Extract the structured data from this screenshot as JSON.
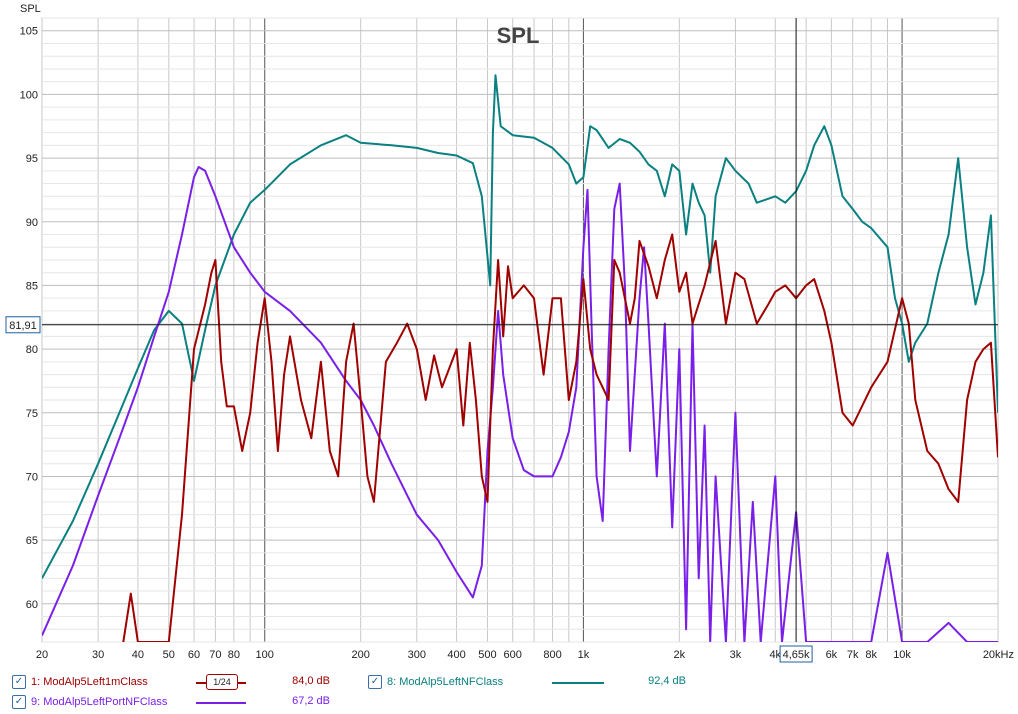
{
  "window": {
    "title": "SPL",
    "y_axis_label": "SPL"
  },
  "cursor": {
    "y_value_label": "81,91",
    "x_value_label": "4,65k",
    "y_value": 81.91,
    "x_value": 4650
  },
  "chart_data": {
    "type": "line",
    "title": "SPL",
    "xlabel": "",
    "ylabel": "SPL",
    "xscale": "log",
    "xlim": [
      20,
      20000
    ],
    "ylim": [
      57,
      106
    ],
    "grid": true,
    "x_tick_labels": [
      {
        "v": 20,
        "t": "20"
      },
      {
        "v": 30,
        "t": "30"
      },
      {
        "v": 40,
        "t": "40"
      },
      {
        "v": 50,
        "t": "50"
      },
      {
        "v": 60,
        "t": "60"
      },
      {
        "v": 70,
        "t": "70"
      },
      {
        "v": 80,
        "t": "80"
      },
      {
        "v": 100,
        "t": "100"
      },
      {
        "v": 200,
        "t": "200"
      },
      {
        "v": 300,
        "t": "300"
      },
      {
        "v": 400,
        "t": "400"
      },
      {
        "v": 500,
        "t": "500"
      },
      {
        "v": 600,
        "t": "600"
      },
      {
        "v": 800,
        "t": "800"
      },
      {
        "v": 1000,
        "t": "1k"
      },
      {
        "v": 2000,
        "t": "2k"
      },
      {
        "v": 3000,
        "t": "3k"
      },
      {
        "v": 4000,
        "t": "4k"
      },
      {
        "v": 6000,
        "t": "6k"
      },
      {
        "v": 7000,
        "t": "7k"
      },
      {
        "v": 8000,
        "t": "8k"
      },
      {
        "v": 10000,
        "t": "10k"
      },
      {
        "v": 20000,
        "t": "20kHz"
      }
    ],
    "y_tick_labels": [
      {
        "v": 60,
        "t": "60"
      },
      {
        "v": 65,
        "t": "65"
      },
      {
        "v": 70,
        "t": "70"
      },
      {
        "v": 75,
        "t": "75"
      },
      {
        "v": 80,
        "t": "80"
      },
      {
        "v": 85,
        "t": "85"
      },
      {
        "v": 90,
        "t": "90"
      },
      {
        "v": 95,
        "t": "95"
      },
      {
        "v": 100,
        "t": "100"
      },
      {
        "v": 105,
        "t": "105"
      }
    ],
    "series": [
      {
        "name": "ModAlp5LeftNFClass",
        "color": "#0a8080",
        "points": [
          [
            20,
            62
          ],
          [
            25,
            66.5
          ],
          [
            30,
            71
          ],
          [
            35,
            75
          ],
          [
            40,
            78.5
          ],
          [
            45,
            81.5
          ],
          [
            50,
            83
          ],
          [
            55,
            82
          ],
          [
            60,
            77.5
          ],
          [
            65,
            81.5
          ],
          [
            70,
            85
          ],
          [
            80,
            89
          ],
          [
            90,
            91.5
          ],
          [
            100,
            92.5
          ],
          [
            120,
            94.5
          ],
          [
            150,
            96
          ],
          [
            180,
            96.8
          ],
          [
            200,
            96.2
          ],
          [
            250,
            96
          ],
          [
            300,
            95.8
          ],
          [
            350,
            95.4
          ],
          [
            400,
            95.2
          ],
          [
            450,
            94.6
          ],
          [
            480,
            92
          ],
          [
            510,
            85
          ],
          [
            520,
            97
          ],
          [
            530,
            101.5
          ],
          [
            550,
            97.5
          ],
          [
            600,
            96.8
          ],
          [
            700,
            96.6
          ],
          [
            800,
            95.8
          ],
          [
            900,
            94.5
          ],
          [
            950,
            93
          ],
          [
            1000,
            93.5
          ],
          [
            1050,
            97.5
          ],
          [
            1100,
            97.2
          ],
          [
            1200,
            95.8
          ],
          [
            1300,
            96.5
          ],
          [
            1400,
            96.2
          ],
          [
            1500,
            95.5
          ],
          [
            1600,
            94.5
          ],
          [
            1700,
            94
          ],
          [
            1800,
            92
          ],
          [
            1900,
            94.5
          ],
          [
            2000,
            94
          ],
          [
            2100,
            89
          ],
          [
            2200,
            93
          ],
          [
            2300,
            91.5
          ],
          [
            2400,
            90.5
          ],
          [
            2500,
            86
          ],
          [
            2600,
            92
          ],
          [
            2800,
            95
          ],
          [
            3000,
            94
          ],
          [
            3300,
            93
          ],
          [
            3500,
            91.5
          ],
          [
            4000,
            92
          ],
          [
            4300,
            91.5
          ],
          [
            4650,
            92.4
          ],
          [
            5000,
            94
          ],
          [
            5300,
            96
          ],
          [
            5700,
            97.5
          ],
          [
            6000,
            96
          ],
          [
            6500,
            92
          ],
          [
            7000,
            91
          ],
          [
            7500,
            90
          ],
          [
            8000,
            89.5
          ],
          [
            9000,
            88
          ],
          [
            9500,
            84
          ],
          [
            10000,
            82
          ],
          [
            10500,
            79
          ],
          [
            11000,
            80.5
          ],
          [
            12000,
            82
          ],
          [
            13000,
            86
          ],
          [
            14000,
            89
          ],
          [
            15000,
            95
          ],
          [
            16000,
            88
          ],
          [
            17000,
            83.5
          ],
          [
            18000,
            86
          ],
          [
            19000,
            90.5
          ],
          [
            20000,
            75
          ]
        ]
      },
      {
        "name": "ModAlp5LeftPortNFClass",
        "color": "#7a1fe8",
        "points": [
          [
            20,
            57.5
          ],
          [
            25,
            63
          ],
          [
            30,
            68.5
          ],
          [
            35,
            73
          ],
          [
            40,
            77
          ],
          [
            45,
            81
          ],
          [
            50,
            84.5
          ],
          [
            55,
            89
          ],
          [
            60,
            93.5
          ],
          [
            62,
            94.3
          ],
          [
            65,
            94
          ],
          [
            70,
            92
          ],
          [
            80,
            88
          ],
          [
            90,
            86
          ],
          [
            100,
            84.5
          ],
          [
            120,
            83
          ],
          [
            150,
            80.5
          ],
          [
            180,
            77.5
          ],
          [
            200,
            76
          ],
          [
            220,
            74
          ],
          [
            250,
            71
          ],
          [
            300,
            67
          ],
          [
            350,
            65
          ],
          [
            400,
            62.5
          ],
          [
            450,
            60.5
          ],
          [
            480,
            63
          ],
          [
            500,
            72
          ],
          [
            520,
            77
          ],
          [
            540,
            83
          ],
          [
            560,
            78
          ],
          [
            600,
            73
          ],
          [
            650,
            70.5
          ],
          [
            700,
            70
          ],
          [
            750,
            70
          ],
          [
            800,
            70
          ],
          [
            850,
            71.5
          ],
          [
            900,
            73.5
          ],
          [
            950,
            77
          ],
          [
            1000,
            88
          ],
          [
            1030,
            92.5
          ],
          [
            1060,
            82
          ],
          [
            1100,
            70
          ],
          [
            1150,
            66.5
          ],
          [
            1200,
            80
          ],
          [
            1250,
            91
          ],
          [
            1300,
            93
          ],
          [
            1350,
            85
          ],
          [
            1400,
            72
          ],
          [
            1500,
            84
          ],
          [
            1550,
            88
          ],
          [
            1600,
            82
          ],
          [
            1700,
            70
          ],
          [
            1800,
            82
          ],
          [
            1900,
            66
          ],
          [
            2000,
            80
          ],
          [
            2100,
            58
          ],
          [
            2200,
            82
          ],
          [
            2300,
            62
          ],
          [
            2400,
            74
          ],
          [
            2500,
            57
          ],
          [
            2600,
            70
          ],
          [
            2800,
            57
          ],
          [
            3000,
            75
          ],
          [
            3200,
            57
          ],
          [
            3400,
            68
          ],
          [
            3600,
            57
          ],
          [
            4000,
            70
          ],
          [
            4200,
            57
          ],
          [
            4650,
            67.2
          ],
          [
            5000,
            57
          ],
          [
            5500,
            57
          ],
          [
            6000,
            57
          ],
          [
            8000,
            57
          ],
          [
            9000,
            64
          ],
          [
            10000,
            57
          ],
          [
            12000,
            57
          ],
          [
            14000,
            58.5
          ],
          [
            16000,
            57
          ],
          [
            20000,
            57
          ]
        ]
      },
      {
        "name": "ModAlp5Left1mClass",
        "color": "#a00000",
        "points": [
          [
            36,
            57
          ],
          [
            38,
            60.8
          ],
          [
            40,
            57
          ],
          [
            50,
            57
          ],
          [
            55,
            67
          ],
          [
            60,
            80
          ],
          [
            65,
            83.5
          ],
          [
            68,
            86
          ],
          [
            70,
            87
          ],
          [
            73,
            79
          ],
          [
            76,
            75.5
          ],
          [
            80,
            75.5
          ],
          [
            85,
            72
          ],
          [
            90,
            75
          ],
          [
            95,
            80.5
          ],
          [
            100,
            84
          ],
          [
            105,
            79
          ],
          [
            110,
            72
          ],
          [
            115,
            78
          ],
          [
            120,
            81
          ],
          [
            130,
            76
          ],
          [
            140,
            73
          ],
          [
            150,
            79
          ],
          [
            160,
            72
          ],
          [
            170,
            70
          ],
          [
            180,
            79
          ],
          [
            190,
            82
          ],
          [
            200,
            76
          ],
          [
            210,
            70
          ],
          [
            220,
            68
          ],
          [
            240,
            79
          ],
          [
            260,
            80.5
          ],
          [
            280,
            82
          ],
          [
            300,
            80
          ],
          [
            320,
            76
          ],
          [
            340,
            79.5
          ],
          [
            360,
            77
          ],
          [
            400,
            80
          ],
          [
            420,
            74
          ],
          [
            440,
            80.5
          ],
          [
            460,
            76
          ],
          [
            480,
            70
          ],
          [
            500,
            68
          ],
          [
            520,
            80
          ],
          [
            540,
            87
          ],
          [
            560,
            81
          ],
          [
            580,
            86.5
          ],
          [
            600,
            84
          ],
          [
            650,
            85
          ],
          [
            700,
            84
          ],
          [
            750,
            78
          ],
          [
            800,
            84
          ],
          [
            850,
            84
          ],
          [
            900,
            76
          ],
          [
            950,
            79
          ],
          [
            1000,
            85.5
          ],
          [
            1050,
            80
          ],
          [
            1100,
            78
          ],
          [
            1200,
            76
          ],
          [
            1250,
            87
          ],
          [
            1300,
            86
          ],
          [
            1400,
            82
          ],
          [
            1450,
            84
          ],
          [
            1500,
            88.5
          ],
          [
            1600,
            86.5
          ],
          [
            1700,
            84
          ],
          [
            1800,
            87
          ],
          [
            1900,
            89
          ],
          [
            2000,
            84.5
          ],
          [
            2100,
            86
          ],
          [
            2200,
            82
          ],
          [
            2400,
            85
          ],
          [
            2600,
            88.5
          ],
          [
            2800,
            82
          ],
          [
            3000,
            86
          ],
          [
            3200,
            85.5
          ],
          [
            3500,
            82
          ],
          [
            3800,
            83.5
          ],
          [
            4000,
            84.5
          ],
          [
            4300,
            85
          ],
          [
            4650,
            84
          ],
          [
            5000,
            85
          ],
          [
            5300,
            85.5
          ],
          [
            5700,
            83
          ],
          [
            6000,
            80.5
          ],
          [
            6500,
            75
          ],
          [
            7000,
            74
          ],
          [
            8000,
            77
          ],
          [
            9000,
            79
          ],
          [
            10000,
            84
          ],
          [
            10500,
            82
          ],
          [
            11000,
            76
          ],
          [
            12000,
            72
          ],
          [
            13000,
            71
          ],
          [
            14000,
            69
          ],
          [
            15000,
            68
          ],
          [
            16000,
            76
          ],
          [
            17000,
            79
          ],
          [
            18000,
            80
          ],
          [
            19000,
            80.5
          ],
          [
            20000,
            71.5
          ]
        ]
      }
    ]
  },
  "legend": [
    {
      "index_label": "1: ModAlp5Left1mClass",
      "value": "84,0 dB",
      "color": "#a00000",
      "smoothing": "1/24"
    },
    {
      "index_label": "8: ModAlp5LeftNFClass",
      "value": "92,4 dB",
      "color": "#0a8080"
    },
    {
      "index_label": "9: ModAlp5LeftPortNFClass",
      "value": "67,2 dB",
      "color": "#7a1fe8"
    }
  ]
}
